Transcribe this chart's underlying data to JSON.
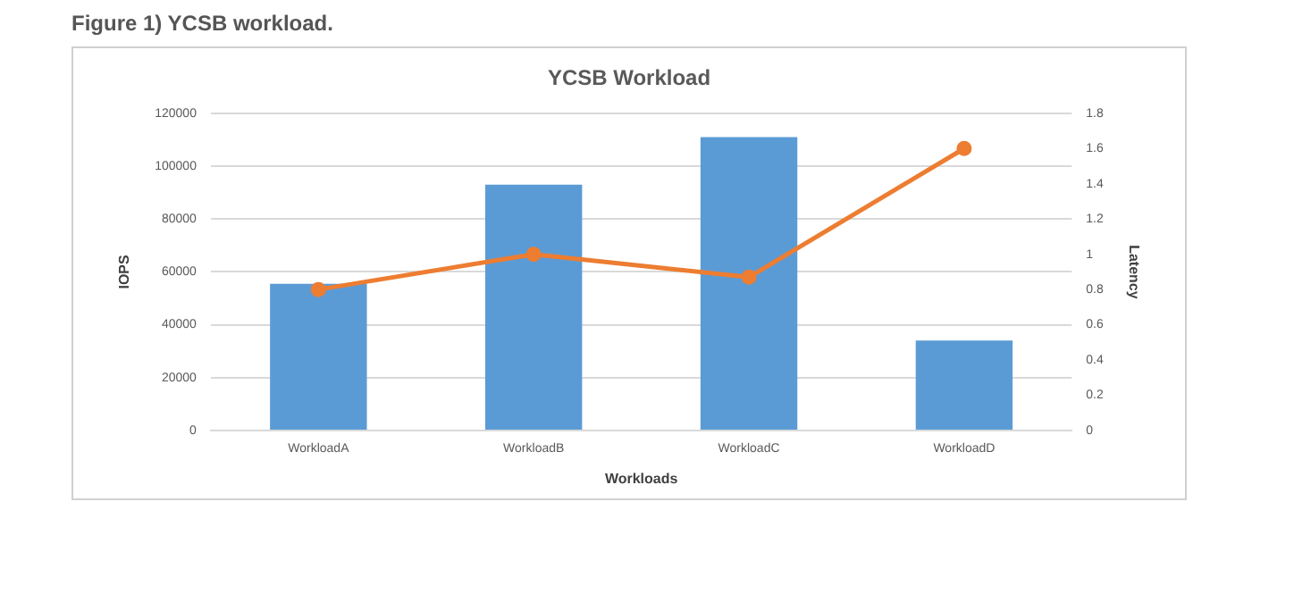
{
  "chart_data": {
    "type": "bar",
    "title": "YCSB Workload",
    "xlabel": "Workloads",
    "ylabel": "IOPS",
    "y2label": "Latency",
    "annotations": [
      "Figure 1) YCSB workload."
    ],
    "categories": [
      "WorkloadA",
      "WorkloadB",
      "WorkloadC",
      "WorkloadD"
    ],
    "series": [
      {
        "color": "#5b9bd5",
        "values": [
          55500,
          93000,
          111000,
          34000
        ]
      },
      {
        "type": "line",
        "axis": "y2",
        "color": "#ed7d31",
        "values": [
          0.8,
          1.0,
          0.87,
          1.6
        ]
      }
    ],
    "ylim": [
      0,
      120000
    ],
    "yticks": [
      0,
      20000,
      40000,
      60000,
      80000,
      100000,
      120000
    ],
    "y2lim": [
      0,
      1.8
    ],
    "y2ticks": [
      0,
      0.2,
      0.4,
      0.6,
      0.8,
      1,
      1.2,
      1.4,
      1.6,
      1.8
    ],
    "grid": "y",
    "legend": false,
    "marker": "circle",
    "line_style": "solid"
  }
}
